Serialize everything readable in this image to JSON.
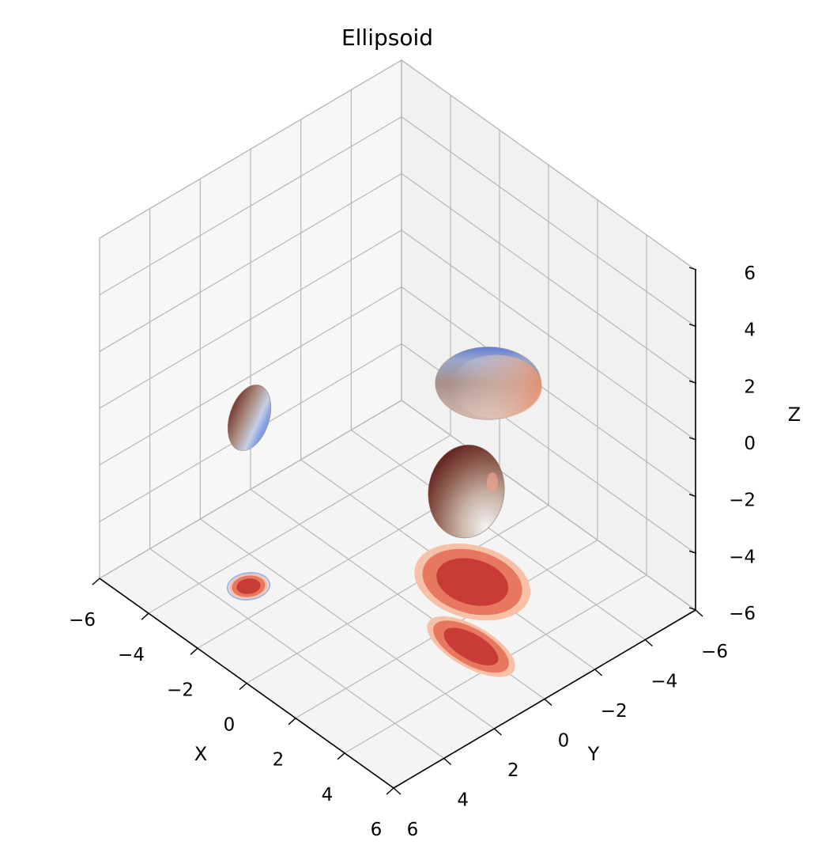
{
  "chart_data": {
    "type": "surface3d",
    "title": "Ellipsoid",
    "xlabel": "X",
    "ylabel": "Y",
    "zlabel": "Z",
    "xlim": [
      -6,
      6
    ],
    "ylim": [
      -6,
      6
    ],
    "zlim": [
      -6,
      6
    ],
    "x_ticks": [
      "−6",
      "−4",
      "−2",
      "0",
      "2",
      "4",
      "6"
    ],
    "y_ticks": [
      "−6",
      "−4",
      "−2",
      "0",
      "2",
      "4",
      "6"
    ],
    "z_ticks": [
      "−6",
      "−4",
      "−2",
      "0",
      "2",
      "4",
      "6"
    ],
    "grid": true,
    "colormap": "coolwarm",
    "ellipsoids": [
      {
        "center": [
          -3,
          3,
          0
        ],
        "radii": [
          0.5,
          0.6,
          1.1
        ]
      },
      {
        "center": [
          3,
          0,
          -1
        ],
        "radii": [
          1.6,
          0.8,
          1.5
        ]
      },
      {
        "center": [
          1,
          -2,
          -1
        ],
        "radii": [
          1.8,
          1.5,
          1.2
        ]
      }
    ],
    "floor_contour_levels": 3,
    "colors": {
      "pane_left": "#f7f7f7",
      "pane_right": "#f1f1f1",
      "pane_floor": "#f4f4f4",
      "grid": "#b7b7b7",
      "contour_outer": "#f6c1a7",
      "contour_mid": "#e8775f",
      "contour_inner": "#c93c35"
    }
  }
}
